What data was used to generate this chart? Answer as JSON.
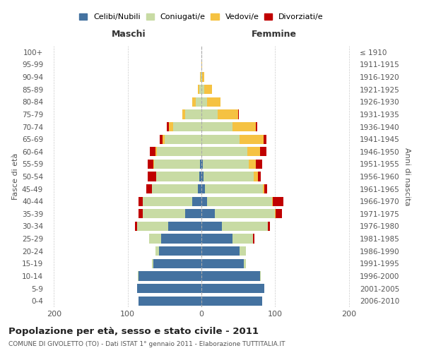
{
  "age_groups": [
    "0-4",
    "5-9",
    "10-14",
    "15-19",
    "20-24",
    "25-29",
    "30-34",
    "35-39",
    "40-44",
    "45-49",
    "50-54",
    "55-59",
    "60-64",
    "65-69",
    "70-74",
    "75-79",
    "80-84",
    "85-89",
    "90-94",
    "95-99",
    "100+"
  ],
  "birth_years": [
    "2006-2010",
    "2001-2005",
    "1996-2000",
    "1991-1995",
    "1986-1990",
    "1981-1985",
    "1976-1980",
    "1971-1975",
    "1966-1970",
    "1961-1965",
    "1956-1960",
    "1951-1955",
    "1946-1950",
    "1941-1945",
    "1936-1940",
    "1931-1935",
    "1926-1930",
    "1921-1925",
    "1916-1920",
    "1911-1915",
    "≤ 1910"
  ],
  "male_celibi": [
    85,
    87,
    85,
    65,
    58,
    55,
    45,
    22,
    12,
    5,
    3,
    2,
    0,
    0,
    0,
    0,
    0,
    0,
    0,
    0,
    0
  ],
  "male_coniugati": [
    0,
    0,
    1,
    2,
    4,
    16,
    42,
    58,
    68,
    62,
    58,
    62,
    60,
    50,
    38,
    22,
    8,
    3,
    1,
    0,
    0
  ],
  "male_vedovi": [
    0,
    0,
    0,
    0,
    0,
    0,
    0,
    0,
    0,
    0,
    0,
    1,
    2,
    3,
    6,
    4,
    4,
    2,
    1,
    0,
    0
  ],
  "male_divorziati": [
    0,
    0,
    0,
    0,
    0,
    0,
    3,
    5,
    5,
    8,
    12,
    8,
    8,
    4,
    3,
    0,
    0,
    0,
    0,
    0,
    0
  ],
  "female_nubili": [
    82,
    85,
    80,
    58,
    52,
    42,
    28,
    18,
    8,
    5,
    3,
    2,
    0,
    0,
    0,
    0,
    0,
    0,
    0,
    0,
    0
  ],
  "female_coniugate": [
    0,
    0,
    1,
    2,
    8,
    28,
    62,
    82,
    88,
    78,
    68,
    62,
    62,
    52,
    42,
    22,
    8,
    4,
    1,
    0,
    0
  ],
  "female_vedove": [
    0,
    0,
    0,
    0,
    0,
    0,
    0,
    1,
    1,
    2,
    6,
    10,
    18,
    32,
    32,
    28,
    18,
    10,
    3,
    1,
    0
  ],
  "female_divorziate": [
    0,
    0,
    0,
    0,
    0,
    2,
    3,
    8,
    14,
    4,
    4,
    8,
    8,
    4,
    2,
    1,
    0,
    0,
    0,
    0,
    0
  ],
  "col_celibi": "#4472a0",
  "col_coniugati": "#c8dba4",
  "col_vedovi": "#f5c242",
  "col_divorziati": "#c00000",
  "xlim": 210,
  "title": "Popolazione per età, sesso e stato civile - 2011",
  "subtitle": "COMUNE DI GIVOLETTO (TO) - Dati ISTAT 1° gennaio 2011 - Elaborazione TUTTITALIA.IT",
  "ylabel_left": "Fasce di età",
  "ylabel_right": "Anni di nascita",
  "label_maschi": "Maschi",
  "label_femmine": "Femmine",
  "legend_celibi": "Celibi/Nubili",
  "legend_coniugati": "Coniugati/e",
  "legend_vedovi": "Vedovi/e",
  "legend_divorziati": "Divorziati/e",
  "bg_color": "#ffffff",
  "grid_color": "#cccccc"
}
